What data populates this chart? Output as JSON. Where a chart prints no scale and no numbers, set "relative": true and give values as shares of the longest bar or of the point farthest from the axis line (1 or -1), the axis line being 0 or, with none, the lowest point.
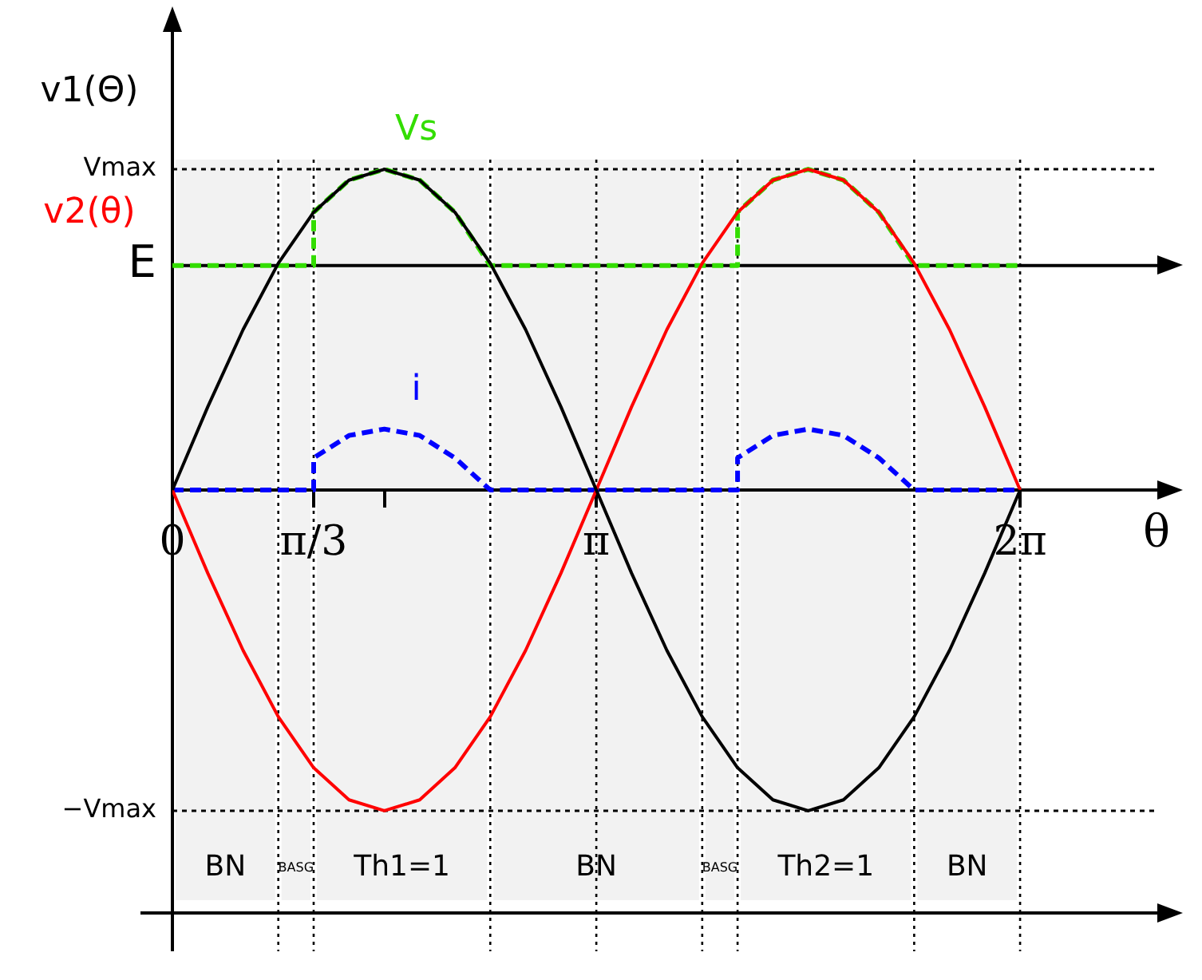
{
  "chart_data": {
    "type": "line",
    "xlabel": "θ",
    "x": [
      0,
      0.262,
      0.524,
      0.785,
      1.047,
      1.309,
      1.571,
      1.833,
      2.094,
      2.356,
      2.618,
      2.88,
      3.142,
      3.403,
      3.665,
      3.927,
      4.189,
      4.451,
      4.712,
      4.974,
      5.236,
      5.498,
      5.76,
      6.021,
      6.283
    ],
    "series": [
      {
        "name": "v1(Θ)",
        "color": "#000000",
        "line_style": "solid",
        "values": [
          0,
          0.259,
          0.5,
          0.707,
          0.866,
          0.966,
          1,
          0.966,
          0.866,
          0.707,
          0.5,
          0.259,
          0,
          -0.259,
          -0.5,
          -0.707,
          -0.866,
          -0.966,
          -1,
          -0.966,
          -0.866,
          -0.707,
          -0.5,
          -0.259,
          0
        ]
      },
      {
        "name": "v2(θ)",
        "color": "#ff0000",
        "line_style": "solid",
        "values": [
          0,
          -0.259,
          -0.5,
          -0.707,
          -0.866,
          -0.966,
          -1,
          -0.966,
          -0.866,
          -0.707,
          -0.5,
          -0.259,
          0,
          0.259,
          0.5,
          0.707,
          0.866,
          0.966,
          1,
          0.966,
          0.866,
          0.707,
          0.5,
          0.259,
          0
        ]
      },
      {
        "name": "Vs",
        "color": "#33dd00",
        "line_style": "dashed",
        "x": [
          0,
          1.047,
          1.047,
          1.309,
          1.571,
          1.833,
          2.094,
          2.356,
          4.189,
          4.189,
          4.451,
          4.712,
          4.974,
          5.236,
          5.498,
          6.283
        ],
        "values": [
          0.7,
          0.7,
          0.866,
          0.966,
          1,
          0.966,
          0.866,
          0.7,
          0.7,
          0.866,
          0.966,
          1,
          0.966,
          0.866,
          0.7,
          0.7
        ]
      },
      {
        "name": "i",
        "color": "#0000ff",
        "line_style": "dashed",
        "x": [
          0,
          1.047,
          1.047,
          1.309,
          1.571,
          1.833,
          2.094,
          2.356,
          3.142,
          4.189,
          4.189,
          4.451,
          4.712,
          4.974,
          5.236,
          5.498,
          6.283
        ],
        "values": [
          0,
          0,
          0.1,
          0.17,
          0.19,
          0.17,
          0.1,
          0,
          0,
          0,
          0.1,
          0.17,
          0.19,
          0.17,
          0.1,
          0,
          0
        ]
      }
    ],
    "xlim": [
      0,
      7.3
    ],
    "relative": true,
    "xticks": [
      0,
      {
        "value": 1.047,
        "label": "π/3"
      },
      {
        "value": 1.571,
        "label": null
      },
      {
        "value": 3.142,
        "label": "π"
      },
      {
        "value": 6.283,
        "label": "2π"
      }
    ],
    "ref_lines": [
      {
        "axis": "y",
        "value": 1,
        "label": "Vmax",
        "color": "#000000",
        "line_style": "dotted"
      },
      {
        "axis": "y",
        "value": -1,
        "label": "−Vmax",
        "color": "#000000",
        "line_style": "dotted"
      },
      {
        "axis": "y",
        "value": 0.7,
        "label": "E",
        "color": "#000000",
        "line_style": "solid"
      },
      {
        "axis": "x",
        "value": 0.785,
        "color": "#000000",
        "line_style": "dotted"
      },
      {
        "axis": "x",
        "value": 1.047,
        "color": "#000000",
        "line_style": "dotted"
      },
      {
        "axis": "x",
        "value": 2.356,
        "color": "#000000",
        "line_style": "dotted"
      },
      {
        "axis": "x",
        "value": 3.142,
        "color": "#000000",
        "line_style": "dotted"
      },
      {
        "axis": "x",
        "value": 3.927,
        "color": "#000000",
        "line_style": "dotted"
      },
      {
        "axis": "x",
        "value": 4.189,
        "color": "#000000",
        "line_style": "dotted"
      },
      {
        "axis": "x",
        "value": 5.498,
        "color": "#000000",
        "line_style": "dotted"
      },
      {
        "axis": "x",
        "value": 6.283,
        "color": "#000000",
        "line_style": "dotted"
      }
    ],
    "bands": [
      {
        "axis": "x",
        "from": 0,
        "to": 0.785,
        "label": "BN",
        "color": "#f2f2f2"
      },
      {
        "axis": "x",
        "from": 0.785,
        "to": 1.047,
        "label": "BASG",
        "color": "#f2f2f2"
      },
      {
        "axis": "x",
        "from": 1.047,
        "to": 2.356,
        "label": "Th1=1",
        "color": "#f2f2f2"
      },
      {
        "axis": "x",
        "from": 2.356,
        "to": 3.927,
        "label": "BN",
        "color": "#f2f2f2"
      },
      {
        "axis": "x",
        "from": 3.927,
        "to": 4.189,
        "label": "BASG",
        "color": "#f2f2f2"
      },
      {
        "axis": "x",
        "from": 4.189,
        "to": 5.498,
        "label": "Th2=1",
        "color": "#f2f2f2"
      },
      {
        "axis": "x",
        "from": 5.498,
        "to": 6.283,
        "label": "BN",
        "color": "#f2f2f2"
      }
    ],
    "marker": "none",
    "grid": false,
    "legend": "top left"
  }
}
